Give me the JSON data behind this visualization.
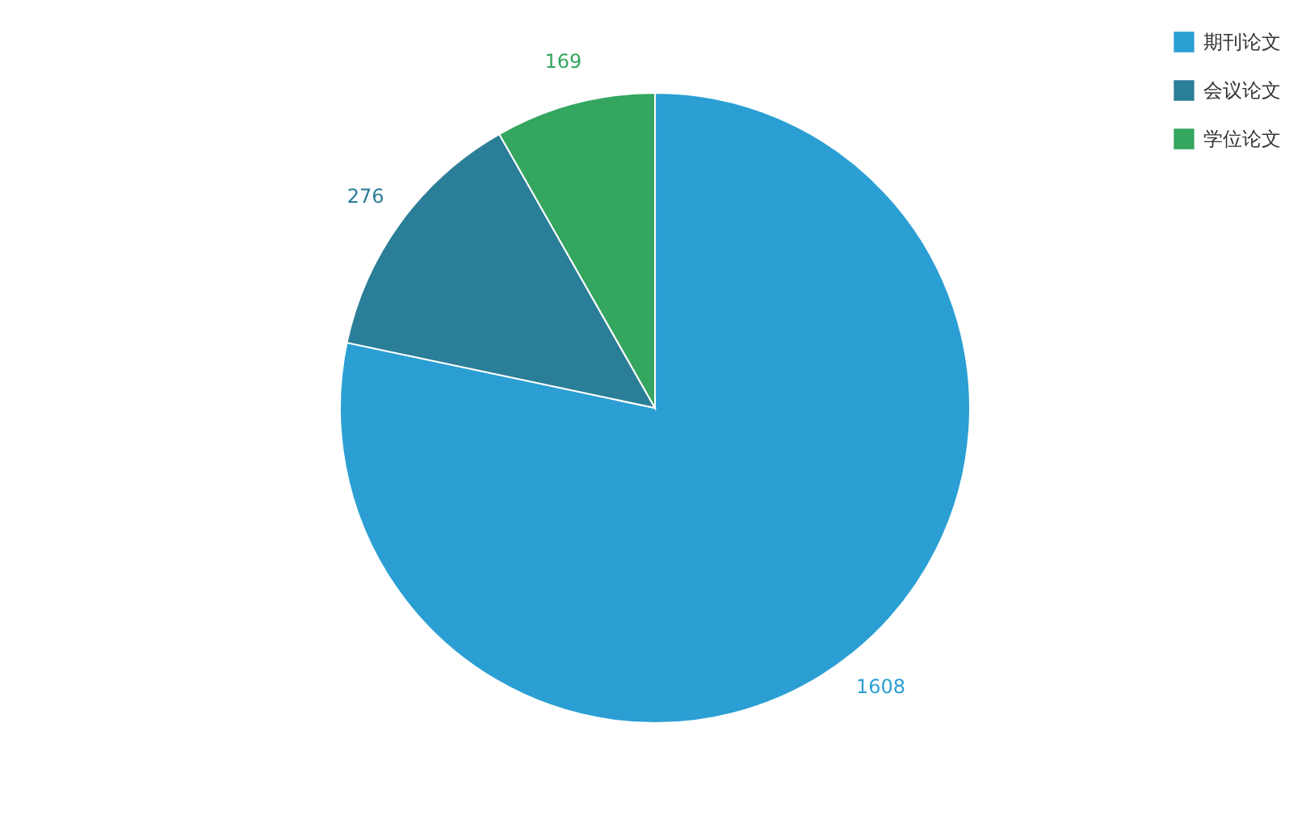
{
  "chart_data": {
    "type": "pie",
    "categories": [
      "期刊论文",
      "会议论文",
      "学位论文"
    ],
    "values": [
      1608,
      276,
      169
    ],
    "colors": [
      "#2b9fd3",
      "#2b7e98",
      "#34a65f"
    ],
    "data_labels": true,
    "legend": "top right"
  }
}
